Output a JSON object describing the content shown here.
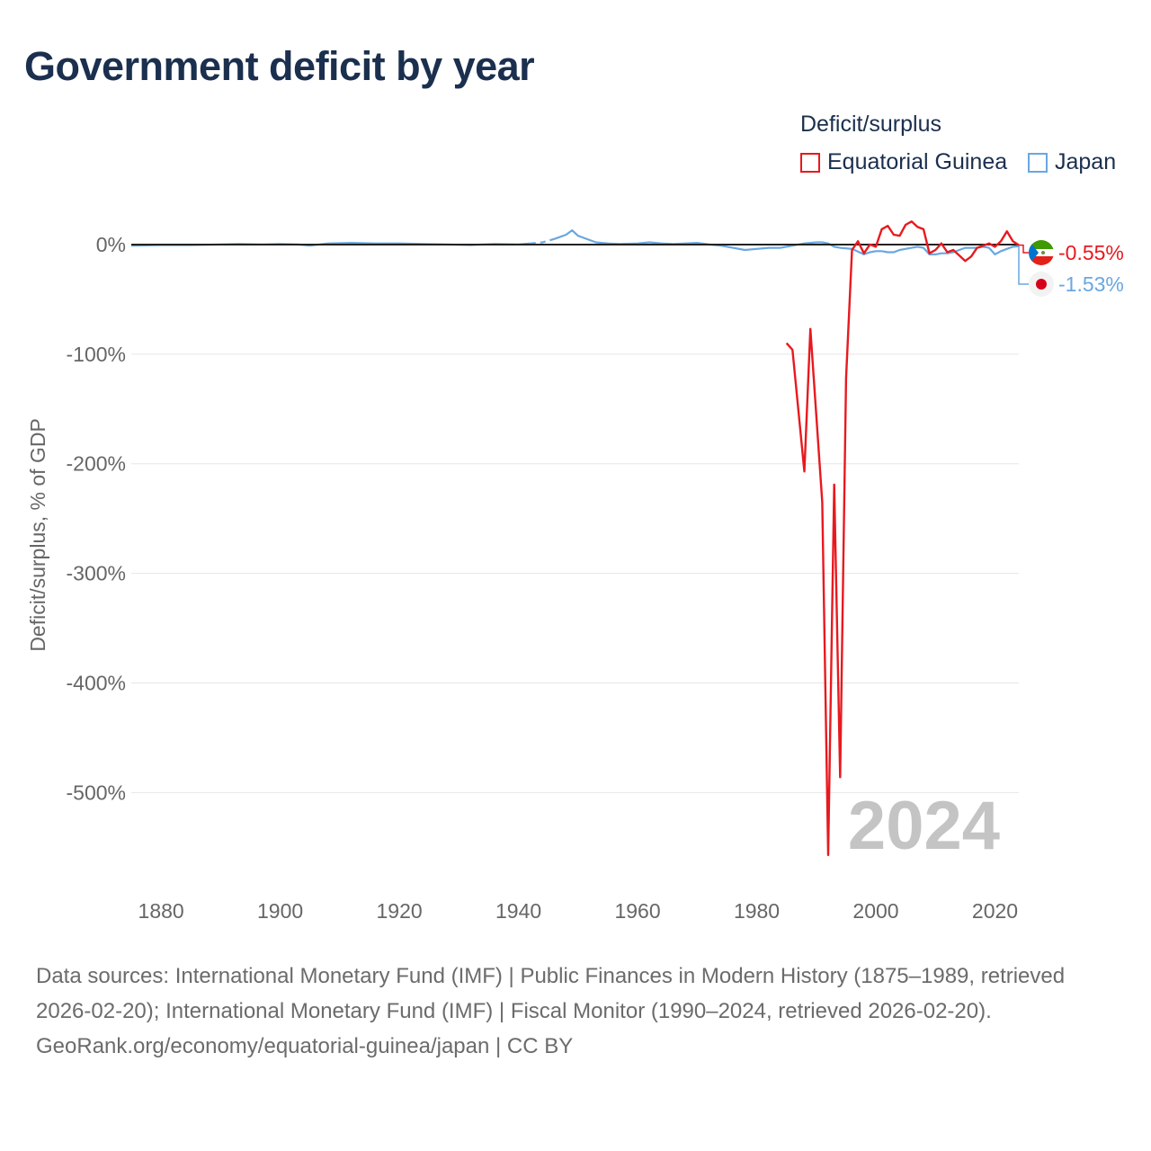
{
  "title": "Government deficit by year",
  "legend": {
    "title": "Deficit/surplus",
    "items": [
      {
        "label": "Equatorial Guinea",
        "color": "#e8191e"
      },
      {
        "label": "Japan",
        "color": "#69a7e0"
      }
    ]
  },
  "footer": {
    "sources": "Data sources: International Monetary Fund (IMF) | Public Finances in Modern History (1875–1989, retrieved 2026-02-20); International Monetary Fund (IMF) | Fiscal Monitor (1990–2024, retrieved 2026-02-20).",
    "credit": "GeoRank.org/economy/equatorial-guinea/japan | CC BY"
  },
  "chart_data": {
    "type": "line",
    "title": "Government deficit by year",
    "ylabel": "Deficit/surplus, % of GDP",
    "xlabel": "",
    "xlim": [
      1875,
      2024
    ],
    "ylim": [
      -585,
      18
    ],
    "xticks": [
      1880,
      1900,
      1920,
      1940,
      1960,
      1980,
      2000,
      2020
    ],
    "yticks": [
      0,
      -100,
      -200,
      -300,
      -400,
      -500
    ],
    "ytick_labels": [
      "0%",
      "-100%",
      "-200%",
      "-300%",
      "-400%",
      "-500%"
    ],
    "year_watermark": "2024",
    "series": [
      {
        "name": "Equatorial Guinea",
        "color": "#e8191e",
        "end_label": "-0.55%",
        "flag": "equatorial-guinea-flag",
        "points": [
          [
            1985,
            -90
          ],
          [
            1986,
            -96
          ],
          [
            1988,
            -207
          ],
          [
            1989,
            -77
          ],
          [
            1991,
            -235
          ],
          [
            1992,
            -557
          ],
          [
            1993,
            -219
          ],
          [
            1994,
            -486
          ],
          [
            1995,
            -122
          ],
          [
            1996,
            -5
          ],
          [
            1997,
            3
          ],
          [
            1998,
            -8
          ],
          [
            1999,
            0
          ],
          [
            2000,
            -2
          ],
          [
            2001,
            14
          ],
          [
            2002,
            17
          ],
          [
            2003,
            9
          ],
          [
            2004,
            8
          ],
          [
            2005,
            18
          ],
          [
            2006,
            21
          ],
          [
            2007,
            16
          ],
          [
            2008,
            14
          ],
          [
            2009,
            -8
          ],
          [
            2010,
            -5
          ],
          [
            2011,
            1
          ],
          [
            2012,
            -7
          ],
          [
            2013,
            -5
          ],
          [
            2014,
            -10
          ],
          [
            2015,
            -15
          ],
          [
            2016,
            -11
          ],
          [
            2017,
            -3
          ],
          [
            2018,
            -1
          ],
          [
            2019,
            1
          ],
          [
            2020,
            -2
          ],
          [
            2021,
            3
          ],
          [
            2022,
            12
          ],
          [
            2023,
            3
          ],
          [
            2024,
            -0.55
          ]
        ]
      },
      {
        "name": "Japan",
        "color": "#69a7e0",
        "end_label": "-1.53%",
        "flag": "japan-flag",
        "dashed_range": [
          1942,
          1946
        ],
        "points": [
          [
            1875,
            -1
          ],
          [
            1880,
            -0.5
          ],
          [
            1885,
            -0.5
          ],
          [
            1890,
            0
          ],
          [
            1893,
            0.5
          ],
          [
            1897,
            0
          ],
          [
            1900,
            0.5
          ],
          [
            1903,
            0
          ],
          [
            1905,
            -1
          ],
          [
            1908,
            1
          ],
          [
            1912,
            1.5
          ],
          [
            1916,
            1
          ],
          [
            1920,
            1
          ],
          [
            1924,
            0.5
          ],
          [
            1928,
            0
          ],
          [
            1932,
            -0.5
          ],
          [
            1936,
            0.5
          ],
          [
            1940,
            0
          ],
          [
            1942,
            1
          ],
          [
            1944,
            2
          ],
          [
            1946,
            5
          ],
          [
            1948,
            9
          ],
          [
            1949,
            13
          ],
          [
            1950,
            8
          ],
          [
            1951,
            6
          ],
          [
            1953,
            2
          ],
          [
            1955,
            1
          ],
          [
            1957,
            0.5
          ],
          [
            1960,
            1
          ],
          [
            1962,
            2
          ],
          [
            1964,
            1
          ],
          [
            1966,
            0.5
          ],
          [
            1968,
            1
          ],
          [
            1970,
            1.5
          ],
          [
            1972,
            0
          ],
          [
            1974,
            -1
          ],
          [
            1976,
            -3
          ],
          [
            1978,
            -5
          ],
          [
            1980,
            -4
          ],
          [
            1982,
            -3
          ],
          [
            1984,
            -3
          ],
          [
            1986,
            -1
          ],
          [
            1988,
            1
          ],
          [
            1990,
            2
          ],
          [
            1991,
            2
          ],
          [
            1992,
            1
          ],
          [
            1993,
            -2
          ],
          [
            1994,
            -3
          ],
          [
            1996,
            -4
          ],
          [
            1998,
            -9
          ],
          [
            1999,
            -7
          ],
          [
            2000,
            -6
          ],
          [
            2001,
            -6
          ],
          [
            2002,
            -7
          ],
          [
            2003,
            -7
          ],
          [
            2004,
            -5
          ],
          [
            2005,
            -4
          ],
          [
            2006,
            -3
          ],
          [
            2007,
            -2
          ],
          [
            2008,
            -3
          ],
          [
            2009,
            -9
          ],
          [
            2010,
            -9
          ],
          [
            2011,
            -8
          ],
          [
            2012,
            -8
          ],
          [
            2013,
            -7
          ],
          [
            2014,
            -5
          ],
          [
            2015,
            -3
          ],
          [
            2016,
            -3
          ],
          [
            2017,
            -3
          ],
          [
            2018,
            -2
          ],
          [
            2019,
            -3
          ],
          [
            2020,
            -9
          ],
          [
            2021,
            -6
          ],
          [
            2022,
            -4
          ],
          [
            2023,
            -2
          ],
          [
            2024,
            -1.53
          ]
        ]
      }
    ]
  }
}
